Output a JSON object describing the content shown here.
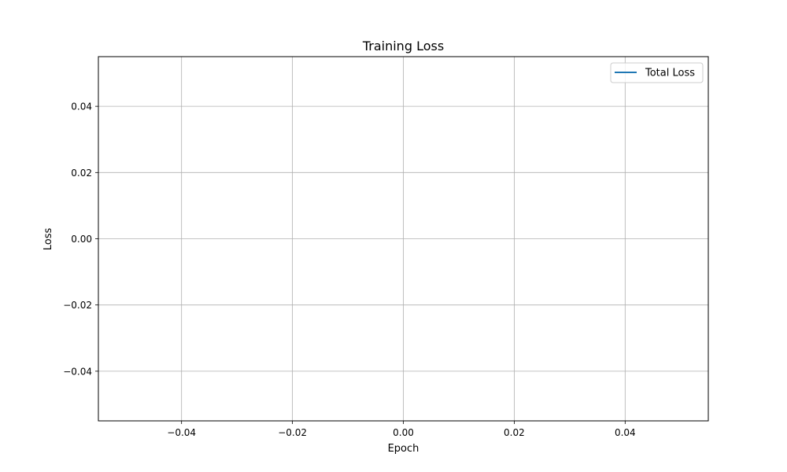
{
  "chart_data": {
    "type": "line",
    "title": "Training Loss",
    "xlabel": "Epoch",
    "ylabel": "Loss",
    "xlim": [
      -0.055,
      0.055
    ],
    "ylim": [
      -0.055,
      0.055
    ],
    "xticks": [
      -0.04,
      -0.02,
      0.0,
      0.02,
      0.04
    ],
    "xtick_labels": [
      "−0.04",
      "−0.02",
      "0.00",
      "0.02",
      "0.04"
    ],
    "yticks": [
      -0.04,
      -0.02,
      0.0,
      0.02,
      0.04
    ],
    "ytick_labels": [
      "−0.04",
      "−0.02",
      "0.00",
      "0.02",
      "0.04"
    ],
    "grid": true,
    "legend_placement": "top-right",
    "series": [
      {
        "name": "Total Loss",
        "color": "#1f77b4",
        "x": [],
        "y": []
      }
    ]
  }
}
